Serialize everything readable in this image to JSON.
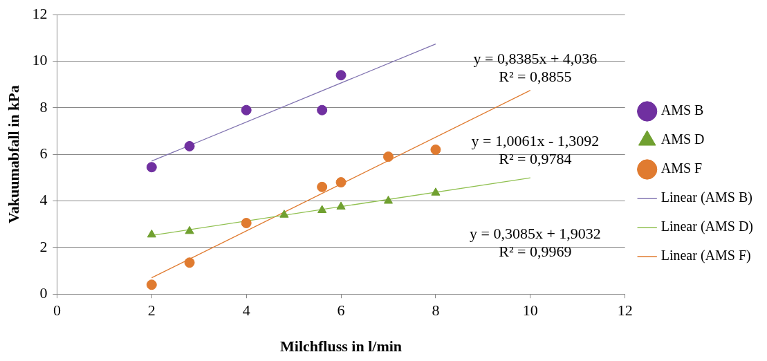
{
  "chart_data": {
    "type": "scatter",
    "xlabel": "Milchfluss in l/min",
    "ylabel": "Vakuumabfall in kPa",
    "xlim": [
      0,
      12
    ],
    "xticks": [
      0,
      2,
      4,
      6,
      8,
      10,
      12
    ],
    "ylim": [
      0,
      12
    ],
    "yticks": [
      0,
      2,
      4,
      6,
      8,
      10,
      12
    ],
    "grid": "y",
    "legend": "right",
    "series": [
      {
        "name": "AMS B",
        "type": "scatter",
        "marker": "circle",
        "color": "#7030a0",
        "x": [
          2,
          2.8,
          4,
          5.6,
          6
        ],
        "values": [
          5.45,
          6.35,
          7.9,
          7.9,
          9.4
        ]
      },
      {
        "name": "AMS D",
        "type": "scatter",
        "marker": "triangle",
        "color": "#70a030",
        "x": [
          2,
          2.8,
          4.8,
          5.6,
          6,
          7,
          8
        ],
        "values": [
          2.55,
          2.7,
          3.4,
          3.6,
          3.75,
          4.0,
          4.35
        ]
      },
      {
        "name": "AMS F",
        "type": "scatter",
        "marker": "circle",
        "color": "#e07b30",
        "x": [
          2,
          2.8,
          4,
          5.6,
          6,
          7,
          8
        ],
        "values": [
          0.4,
          1.35,
          3.05,
          4.6,
          4.8,
          5.9,
          6.2
        ]
      },
      {
        "name": "Linear (AMS B)",
        "type": "line",
        "marker": "none",
        "color": "#8073b0",
        "x": [
          2,
          8
        ],
        "values": [
          5.71,
          10.74
        ]
      },
      {
        "name": "Linear (AMS D)",
        "type": "line",
        "marker": "none",
        "color": "#90c050",
        "x": [
          2,
          10
        ],
        "values": [
          2.52,
          4.99
        ]
      },
      {
        "name": "Linear (AMS F)",
        "type": "line",
        "marker": "none",
        "color": "#e07b30",
        "x": [
          2,
          10
        ],
        "values": [
          0.7,
          8.75
        ]
      }
    ],
    "annotations": [
      "y = 0,8385x + 4,036\nR² = 0,8855",
      "y = 1,0061x - 1,3092\nR² = 0,9784",
      "y = 0,3085x + 1,9032\nR² = 0,9969"
    ]
  }
}
